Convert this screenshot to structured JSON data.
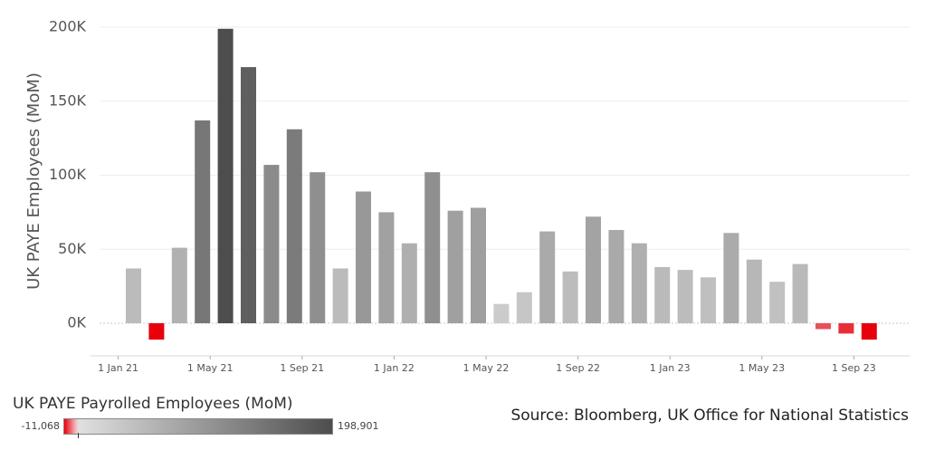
{
  "chart_data": {
    "type": "bar",
    "ylabel": "UK PAYE Employees (MoM)",
    "ylim": [
      -20000,
      200000
    ],
    "y_ticks": [
      0,
      50000,
      100000,
      150000,
      200000
    ],
    "y_tick_labels": [
      "0K",
      "50K",
      "100K",
      "150K",
      "200K"
    ],
    "x_tick_labels": [
      "1 Jan 21",
      "1 May 21",
      "1 Sep 21",
      "1 Jan 22",
      "1 May 22",
      "1 Sep 22",
      "1 Jan 23",
      "1 May 23",
      "1 Sep 23"
    ],
    "categories": [
      "2021-02",
      "2021-03",
      "2021-04",
      "2021-05",
      "2021-06",
      "2021-07",
      "2021-08",
      "2021-09",
      "2021-10",
      "2021-11",
      "2021-12",
      "2022-01",
      "2022-02",
      "2022-03",
      "2022-04",
      "2022-05",
      "2022-06",
      "2022-07",
      "2022-08",
      "2022-09",
      "2022-10",
      "2022-11",
      "2022-12",
      "2023-01",
      "2023-02",
      "2023-03",
      "2023-04",
      "2023-05",
      "2023-06",
      "2023-07",
      "2023-08",
      "2023-09",
      "2023-10"
    ],
    "values": [
      37000,
      -11068,
      51000,
      137000,
      198901,
      173000,
      107000,
      131000,
      102000,
      37000,
      89000,
      75000,
      54000,
      102000,
      76000,
      78000,
      13000,
      21000,
      62000,
      35000,
      72000,
      63000,
      54000,
      38000,
      36000,
      31000,
      61000,
      43000,
      28000,
      40000,
      -4000,
      -7000,
      -11068
    ],
    "gridlines": true,
    "color_scale": {
      "title": "UK PAYE Payrolled Employees (MoM)",
      "min": -11068,
      "max": 198901,
      "min_label": "-11,068",
      "max_label": "198,901",
      "neg_color": "#e8000b",
      "zero_color": "#e0e0e0",
      "max_color": "#4d4d4d"
    }
  },
  "source": "Source: Bloomberg, UK Office for National Statistics"
}
